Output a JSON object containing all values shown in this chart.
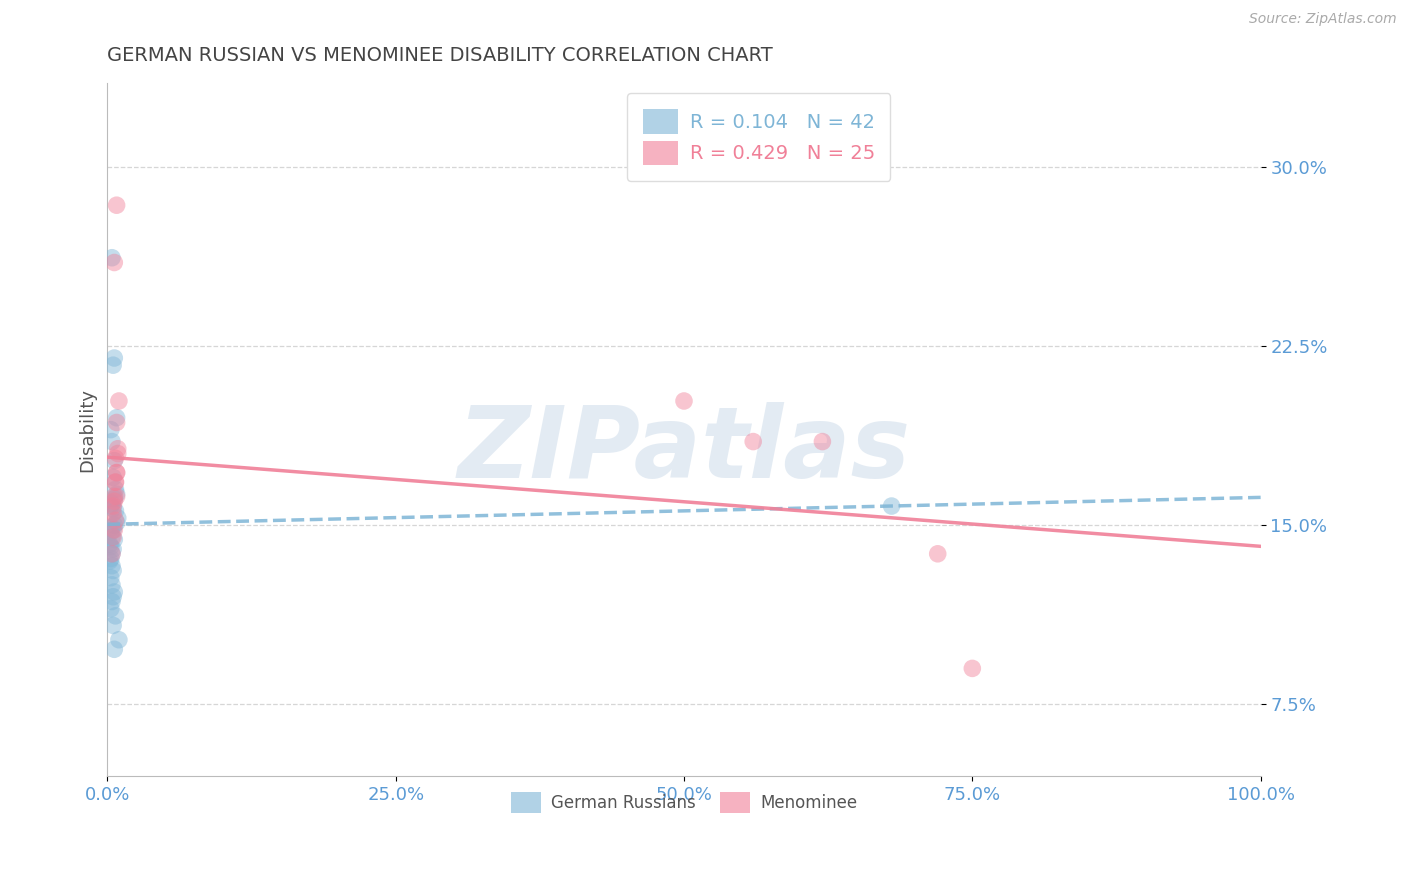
{
  "title": "GERMAN RUSSIAN VS MENOMINEE DISABILITY CORRELATION CHART",
  "source_text": "Source: ZipAtlas.com",
  "ylabel": "Disability",
  "xlim": [
    0.0,
    1.0
  ],
  "ylim": [
    0.045,
    0.335
  ],
  "xticks": [
    0.0,
    0.25,
    0.5,
    0.75,
    1.0
  ],
  "xtick_labels": [
    "0.0%",
    "25.0%",
    "50.0%",
    "75.0%",
    "100.0%"
  ],
  "yticks": [
    0.075,
    0.15,
    0.225,
    0.3
  ],
  "ytick_labels": [
    "7.5%",
    "15.0%",
    "22.5%",
    "30.0%"
  ],
  "legend_R_entries": [
    {
      "label": "R = 0.104   N = 42",
      "color": "#7eb5d6"
    },
    {
      "label": "R = 0.429   N = 25",
      "color": "#f08098"
    }
  ],
  "legend_bottom_labels": [
    "German Russians",
    "Menominee"
  ],
  "blue_color": "#7eb5d6",
  "pink_color": "#f08098",
  "blue_scatter": [
    [
      0.004,
      0.262
    ],
    [
      0.006,
      0.22
    ],
    [
      0.005,
      0.217
    ],
    [
      0.008,
      0.195
    ],
    [
      0.003,
      0.19
    ],
    [
      0.004,
      0.185
    ],
    [
      0.006,
      0.177
    ],
    [
      0.005,
      0.17
    ],
    [
      0.007,
      0.165
    ],
    [
      0.008,
      0.163
    ],
    [
      0.006,
      0.161
    ],
    [
      0.004,
      0.159
    ],
    [
      0.003,
      0.158
    ],
    [
      0.005,
      0.157
    ],
    [
      0.007,
      0.156
    ],
    [
      0.009,
      0.153
    ],
    [
      0.008,
      0.151
    ],
    [
      0.006,
      0.15
    ],
    [
      0.004,
      0.149
    ],
    [
      0.005,
      0.148
    ],
    [
      0.003,
      0.147
    ],
    [
      0.004,
      0.145
    ],
    [
      0.006,
      0.144
    ],
    [
      0.002,
      0.142
    ],
    [
      0.003,
      0.141
    ],
    [
      0.005,
      0.14
    ],
    [
      0.004,
      0.138
    ],
    [
      0.003,
      0.136
    ],
    [
      0.002,
      0.135
    ],
    [
      0.004,
      0.133
    ],
    [
      0.005,
      0.131
    ],
    [
      0.003,
      0.128
    ],
    [
      0.004,
      0.125
    ],
    [
      0.006,
      0.122
    ],
    [
      0.005,
      0.12
    ],
    [
      0.004,
      0.118
    ],
    [
      0.003,
      0.115
    ],
    [
      0.007,
      0.112
    ],
    [
      0.005,
      0.108
    ],
    [
      0.01,
      0.102
    ],
    [
      0.006,
      0.098
    ],
    [
      0.68,
      0.158
    ]
  ],
  "pink_scatter": [
    [
      0.008,
      0.284
    ],
    [
      0.006,
      0.26
    ],
    [
      0.01,
      0.202
    ],
    [
      0.008,
      0.193
    ],
    [
      0.009,
      0.182
    ],
    [
      0.007,
      0.178
    ],
    [
      0.008,
      0.172
    ],
    [
      0.007,
      0.168
    ],
    [
      0.008,
      0.162
    ],
    [
      0.006,
      0.16
    ],
    [
      0.005,
      0.158
    ],
    [
      0.008,
      0.172
    ],
    [
      0.007,
      0.168
    ],
    [
      0.006,
      0.162
    ],
    [
      0.005,
      0.155
    ],
    [
      0.007,
      0.152
    ],
    [
      0.009,
      0.18
    ],
    [
      0.006,
      0.148
    ],
    [
      0.005,
      0.145
    ],
    [
      0.004,
      0.138
    ],
    [
      0.5,
      0.202
    ],
    [
      0.56,
      0.185
    ],
    [
      0.62,
      0.185
    ],
    [
      0.72,
      0.138
    ],
    [
      0.75,
      0.09
    ]
  ],
  "background_color": "#ffffff",
  "grid_color": "#cccccc",
  "title_color": "#444444",
  "tick_color": "#5b9bd5",
  "watermark_text": "ZIPatlas",
  "watermark_color": "#c8d8e8",
  "watermark_alpha": 0.5,
  "watermark_fontsize": 72
}
